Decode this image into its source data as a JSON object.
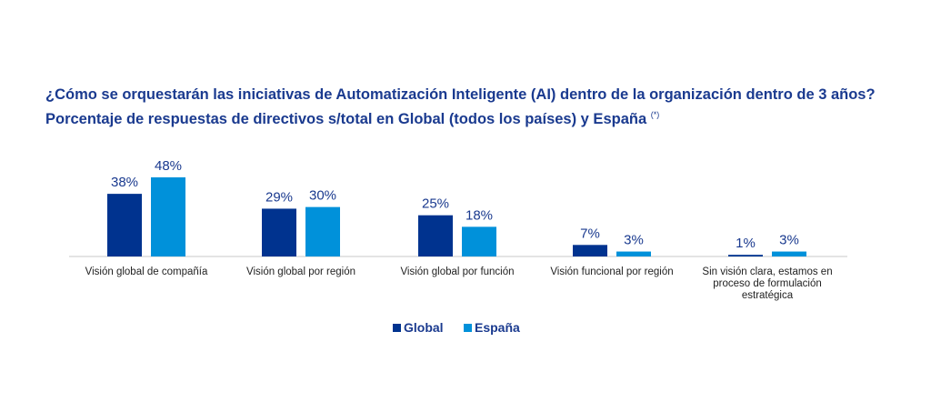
{
  "title": "¿Cómo se orquestarán las iniciativas de Automatización Inteligente (AI) dentro de la organización dentro de 3 años? Porcentaje de respuestas de directivos s/total en Global (todos los países) y España",
  "title_note": "(*)",
  "colors": {
    "Global": "#00338f",
    "España": "#0091da",
    "title": "#1a3a8f",
    "text": "#222222",
    "axis": "#c8c8c8"
  },
  "chart_data": {
    "type": "bar",
    "categories": [
      [
        "Visión global de compañía"
      ],
      [
        "Visión global por región"
      ],
      [
        "Visión global por función"
      ],
      [
        "Visión funcional por región"
      ],
      [
        "Sin visión clara, estamos en",
        "proceso de formulación",
        "estratégica"
      ]
    ],
    "series": [
      {
        "name": "Global",
        "values": [
          38,
          29,
          25,
          7,
          1
        ],
        "labels": [
          "38%",
          "29%",
          "25%",
          "7%",
          "1%"
        ]
      },
      {
        "name": "España",
        "values": [
          48,
          30,
          18,
          3,
          3
        ],
        "labels": [
          "48%",
          "30%",
          "18%",
          "3%",
          "3%"
        ]
      }
    ],
    "ylim": [
      0,
      48
    ],
    "legend": "bottom-center",
    "grid": false
  }
}
